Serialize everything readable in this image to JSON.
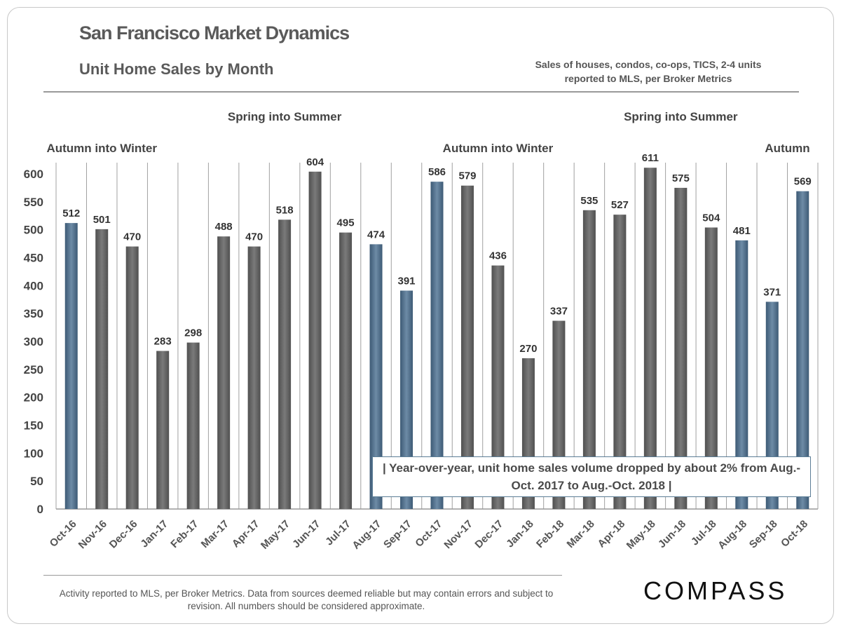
{
  "header": {
    "title": "San Francisco Market Dynamics",
    "subtitle": "Unit Home Sales by Month",
    "note": "Sales of houses, condos, co-ops, TICS, 2-4 units reported to MLS, per Broker Metrics"
  },
  "footer": {
    "disclaimer": "Activity reported to MLS, per Broker Metrics. Data from sources deemed reliable but may contain errors and subject to revision.  All numbers should be considered approximate.",
    "logo": "COMPASS"
  },
  "chart_data": {
    "type": "bar",
    "title": "Unit Home Sales by Month",
    "xlabel": "",
    "ylabel": "",
    "ylim": [
      0,
      600
    ],
    "yticks": [
      0,
      50,
      100,
      150,
      200,
      250,
      300,
      350,
      400,
      450,
      500,
      550,
      600
    ],
    "grid": "vertical cell borders",
    "categories": [
      "Oct-16",
      "Nov-16",
      "Dec-16",
      "Jan-17",
      "Feb-17",
      "Mar-17",
      "Apr-17",
      "May-17",
      "Jun-17",
      "Jul-17",
      "Aug-17",
      "Sep-17",
      "Oct-17",
      "Nov-17",
      "Dec-17",
      "Jan-18",
      "Feb-18",
      "Mar-18",
      "Apr-18",
      "May-18",
      "Jun-18",
      "Jul-18",
      "Aug-18",
      "Sep-18",
      "Oct-18"
    ],
    "values": [
      512,
      501,
      470,
      283,
      298,
      488,
      470,
      518,
      604,
      495,
      474,
      391,
      586,
      579,
      436,
      270,
      337,
      535,
      527,
      611,
      575,
      504,
      481,
      371,
      569
    ],
    "highlight": [
      true,
      false,
      false,
      false,
      false,
      false,
      false,
      false,
      false,
      false,
      true,
      true,
      true,
      false,
      false,
      false,
      false,
      false,
      false,
      false,
      false,
      false,
      true,
      true,
      true
    ],
    "colors": {
      "highlight": "#4f6f8c",
      "default": "#666666"
    },
    "annotations": [
      {
        "text": "Autumn into Winter",
        "category": "Nov-16"
      },
      {
        "text": "Spring into Summer",
        "category": "May-17"
      },
      {
        "text": "Autumn into Winter",
        "category": "Dec-17"
      },
      {
        "text": "Spring into Summer",
        "category": "Jun-18"
      },
      {
        "text": "Autumn",
        "category": "Sep-18"
      }
    ],
    "callout": "|  Year-over-year, unit home sales volume dropped by about 2% from Aug.-Oct. 2017 to Aug.-Oct. 2018  |"
  }
}
